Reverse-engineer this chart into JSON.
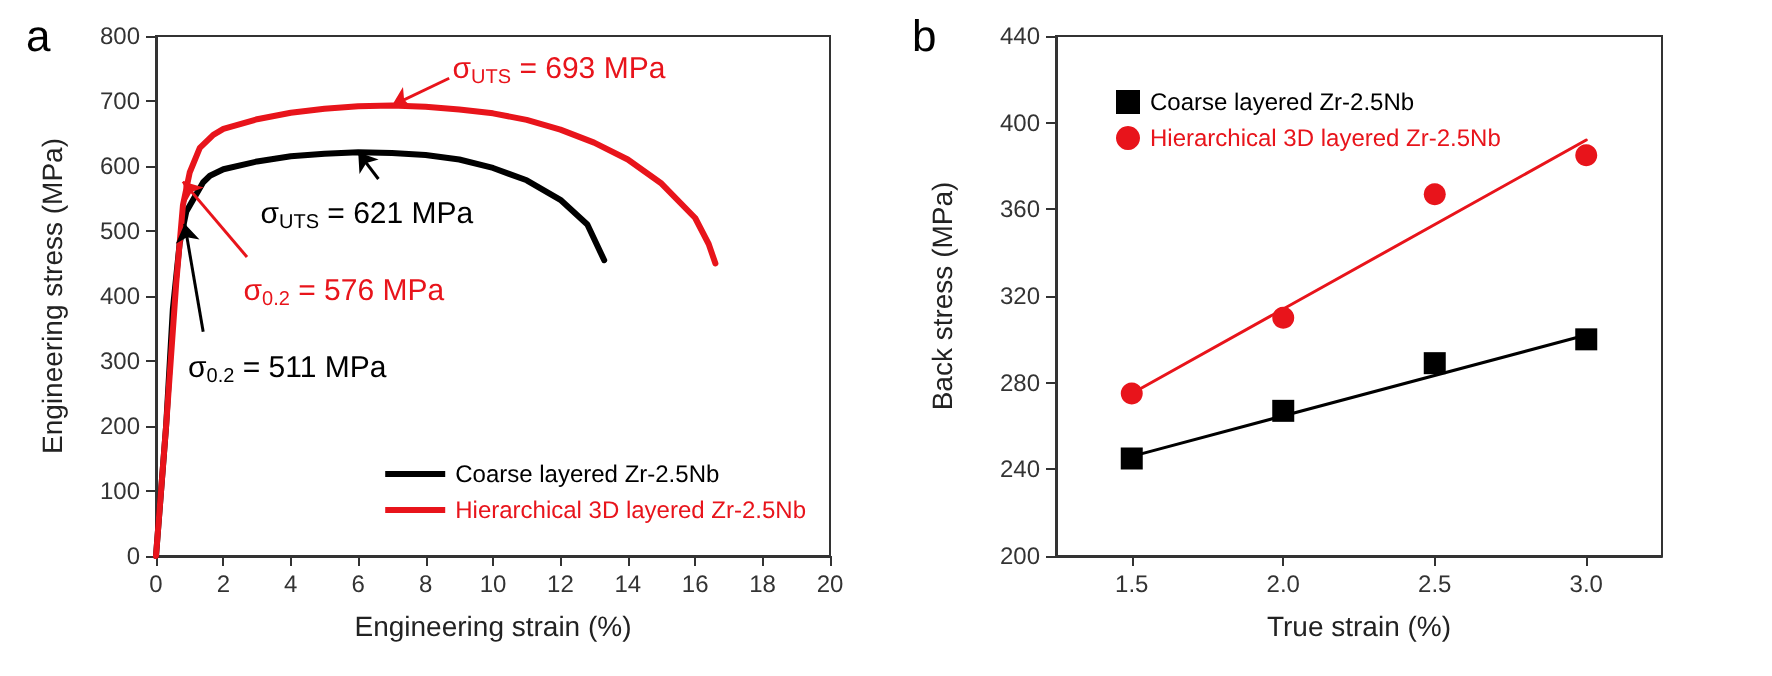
{
  "chart_data": [
    {
      "type": "line",
      "title": "a",
      "xlabel": "Engineering strain (%)",
      "ylabel": "Engineering stress (MPa)",
      "xlim": [
        0,
        20
      ],
      "ylim": [
        0,
        800
      ],
      "xticks": [
        0,
        2,
        4,
        6,
        8,
        10,
        12,
        14,
        16,
        18,
        20
      ],
      "yticks": [
        0,
        100,
        200,
        300,
        400,
        500,
        600,
        700,
        800
      ],
      "grid": false,
      "legend": "bottom right",
      "marker": "none",
      "line_style": "solid",
      "series": [
        {
          "name": "Coarse layered Zr-2.5Nb",
          "color": "#000000",
          "x": [
            0,
            0.3,
            0.5,
            0.7,
            0.9,
            1.4,
            1.6,
            2,
            3,
            4,
            5,
            6,
            7,
            8,
            9,
            10,
            11,
            12,
            12.8,
            13.3
          ],
          "values": [
            0,
            200,
            380,
            480,
            530,
            575,
            585,
            595,
            607,
            615,
            619,
            621,
            620,
            617,
            610,
            597,
            578,
            548,
            510,
            455
          ]
        },
        {
          "name": "Hierarchical 3D layered Zr-2.5Nb",
          "color": "#e8141b",
          "x": [
            0,
            0.3,
            0.6,
            0.8,
            1,
            1.3,
            1.7,
            2,
            3,
            4,
            5,
            6,
            7,
            8,
            9,
            10,
            11,
            12,
            13,
            14,
            15,
            16,
            16.4,
            16.6
          ],
          "values": [
            0,
            200,
            420,
            540,
            590,
            628,
            648,
            657,
            672,
            682,
            688,
            692,
            693,
            691,
            687,
            681,
            671,
            656,
            636,
            610,
            573,
            520,
            480,
            450
          ]
        }
      ],
      "annotations": [
        {
          "text": "σ$_{UTS}$ = 693 MPa",
          "x": 7,
          "y": 693
        },
        {
          "text": "σ$_{UTS}$ = 621 MPa",
          "x": 6,
          "y": 621
        },
        {
          "text": "σ$_{0.2}$ = 576 MPa",
          "x": 0.8,
          "y": 576
        },
        {
          "text": "σ$_{0.2}$ = 511 MPa",
          "x": 0.85,
          "y": 511
        }
      ]
    },
    {
      "type": "scatter",
      "title": "b",
      "xlabel": "True strain (%)",
      "ylabel": "Back stress (MPa)",
      "xlim": [
        1.25,
        3.25
      ],
      "ylim": [
        200,
        440
      ],
      "xticks": [
        1.5,
        {
          "value": 2,
          "label": "2.0"
        },
        2.5,
        {
          "value": 3,
          "label": "3.0"
        }
      ],
      "yticks": [
        200,
        240,
        280,
        320,
        360,
        400,
        440
      ],
      "grid": false,
      "legend": "top left",
      "series": [
        {
          "name": "Coarse layered Zr-2.5Nb",
          "color": "#000000",
          "marker": "square",
          "x": [
            1.5,
            2,
            2.5,
            3
          ],
          "values": [
            245,
            267,
            289,
            300
          ]
        },
        {
          "name": "Hierarchical 3D layered Zr-2.5Nb",
          "color": "#e8141b",
          "marker": "circle",
          "x": [
            1.5,
            2,
            2.5,
            3
          ],
          "values": [
            275,
            310,
            367,
            385
          ]
        },
        {
          "type": "line",
          "color": "#000000",
          "x": [
            1.5,
            3
          ],
          "values": [
            246,
            302
          ]
        },
        {
          "type": "line",
          "color": "#e8141b",
          "x": [
            1.5,
            3
          ],
          "values": [
            275,
            392
          ]
        }
      ]
    }
  ]
}
